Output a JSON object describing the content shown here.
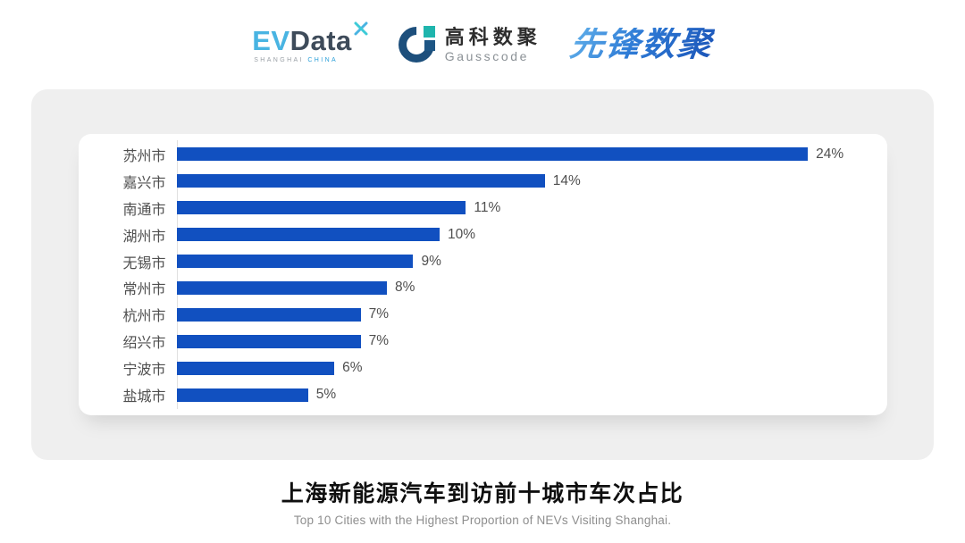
{
  "header": {
    "evdata": {
      "ev": "EV",
      "data": "Data",
      "sub_left": "SHANGHAI",
      "sub_right": "CHINA"
    },
    "gausscode": {
      "cn": "高科数聚",
      "en": "Gausscode"
    },
    "xianfeng": {
      "text": "先锋数聚"
    }
  },
  "chart_data": {
    "type": "bar",
    "orientation": "horizontal",
    "categories": [
      "苏州市",
      "嘉兴市",
      "南通市",
      "湖州市",
      "无锡市",
      "常州市",
      "杭州市",
      "绍兴市",
      "宁波市",
      "盐城市"
    ],
    "values": [
      24,
      14,
      11,
      10,
      9,
      8,
      7,
      7,
      6,
      5
    ],
    "unit": "%",
    "bar_color": "#1150c0",
    "xlim": [
      0,
      27
    ],
    "grid": false,
    "legend": null,
    "value_labels_shown": true
  },
  "footer": {
    "title": "上海新能源汽车到访前十城市车次占比",
    "subtitle": "Top 10 Cities with the Highest Proportion of  NEVs Visiting Shanghai."
  },
  "colors": {
    "bar_blue": "#1150c0",
    "panel_gray": "#efefef",
    "card_white": "#ffffff",
    "label_gray": "#4f4f4f",
    "axis_gray": "#e0e0e0",
    "evdata_lightblue": "#49b4e2",
    "evdata_dark": "#3e4b5a",
    "gausscode_navy": "#1d4f7c",
    "gausscode_teal": "#1fb5ad",
    "xianfeng_blue": "#2e7bd6",
    "title_black": "#0f0f0f",
    "subtitle_gray": "#8e8e8e"
  }
}
